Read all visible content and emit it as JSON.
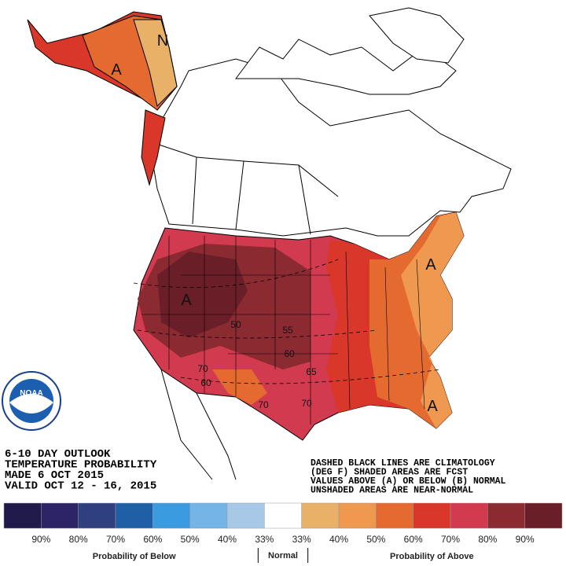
{
  "outlook": {
    "lines": [
      "6-10 DAY OUTLOOK",
      "TEMPERATURE PROBABILITY",
      "MADE  6 OCT 2015",
      "VALID  OCT 12 - 16, 2015"
    ]
  },
  "notes": [
    "DASHED BLACK LINES ARE CLIMATOLOGY",
    "(DEG F) SHADED AREAS ARE FCST",
    "VALUES ABOVE (A) OR BELOW (B) NORMAL",
    "UNSHADED AREAS ARE NEAR-NORMAL"
  ],
  "map_labels": [
    "A",
    "A",
    "A",
    "A",
    "N",
    "50",
    "55",
    "60",
    "65",
    "70",
    "60",
    "70",
    "70"
  ],
  "logo": "NOAA",
  "legend": {
    "colors": [
      "#1f1a4a",
      "#2c2466",
      "#2f3f7f",
      "#1f5fa6",
      "#3a9be0",
      "#74b4e6",
      "#a8c8e8",
      "#ffffff",
      "#e9b068",
      "#ee9850",
      "#e56a30",
      "#d8372a",
      "#d23a50",
      "#8c2a32",
      "#6a1f28"
    ],
    "labels": [
      "90%",
      "80%",
      "70%",
      "60%",
      "50%",
      "40%",
      "33%",
      "33%",
      "40%",
      "50%",
      "60%",
      "70%",
      "80%",
      "90%"
    ],
    "below_title": "Probability of Below",
    "normal_title": "Normal",
    "above_title": "Probability of Above"
  }
}
